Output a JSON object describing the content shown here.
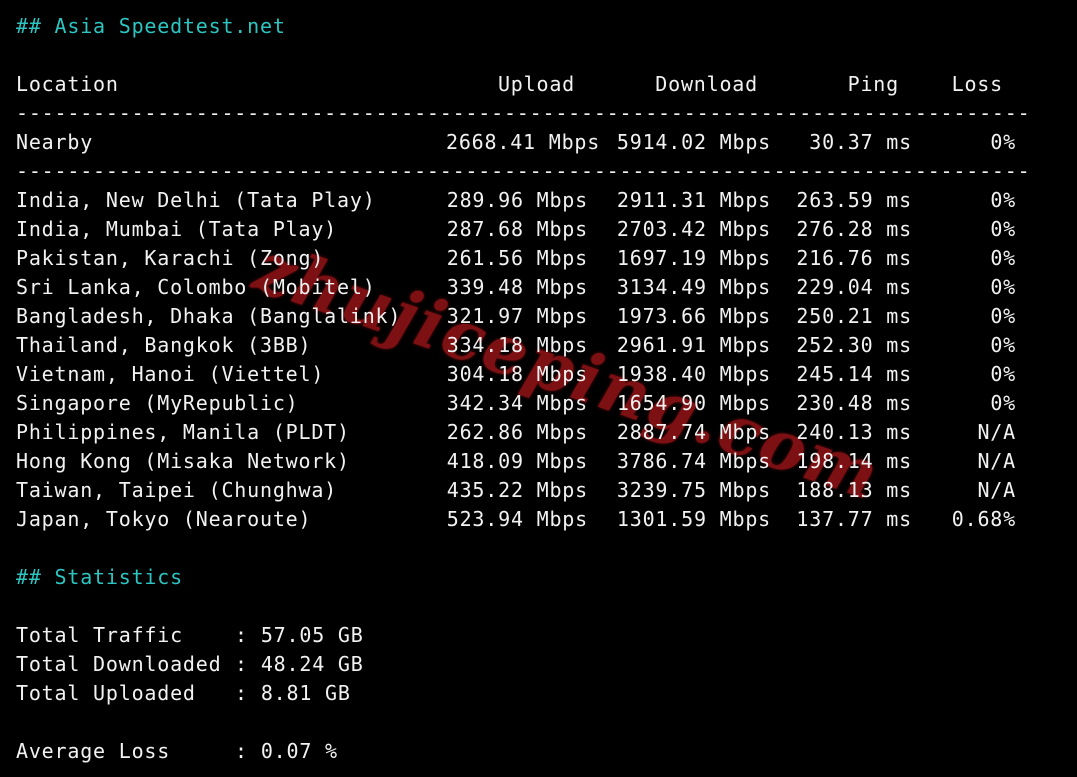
{
  "window": {
    "type": "terminal-output"
  },
  "colors": {
    "background": "#000000",
    "text": "#f2f2f2",
    "heading": "#2cc5c1",
    "watermark": "#7d1013"
  },
  "sections": {
    "speedtest": {
      "title": "## Asia Speedtest.net"
    },
    "statistics": {
      "title": "## Statistics"
    }
  },
  "table": {
    "headers": {
      "location": "Location",
      "upload": "Upload",
      "download": "Download",
      "ping": "Ping",
      "loss": "Loss"
    },
    "separator": "-------------------------------------------------------------------------------",
    "nearby": {
      "location": "Nearby",
      "upload": "2668.41 Mbps",
      "download": "5914.02 Mbps",
      "ping": "30.37 ms",
      "loss": "0%"
    },
    "rows": [
      {
        "location": "India, New Delhi (Tata Play)",
        "upload": "289.96 Mbps",
        "download": "2911.31 Mbps",
        "ping": "263.59 ms",
        "loss": "0%"
      },
      {
        "location": "India, Mumbai (Tata Play)",
        "upload": "287.68 Mbps",
        "download": "2703.42 Mbps",
        "ping": "276.28 ms",
        "loss": "0%"
      },
      {
        "location": "Pakistan, Karachi (Zong)",
        "upload": "261.56 Mbps",
        "download": "1697.19 Mbps",
        "ping": "216.76 ms",
        "loss": "0%"
      },
      {
        "location": "Sri Lanka, Colombo (Mobitel)",
        "upload": "339.48 Mbps",
        "download": "3134.49 Mbps",
        "ping": "229.04 ms",
        "loss": "0%"
      },
      {
        "location": "Bangladesh, Dhaka (Banglalink)",
        "upload": "321.97 Mbps",
        "download": "1973.66 Mbps",
        "ping": "250.21 ms",
        "loss": "0%"
      },
      {
        "location": "Thailand, Bangkok (3BB)",
        "upload": "334.18 Mbps",
        "download": "2961.91 Mbps",
        "ping": "252.30 ms",
        "loss": "0%"
      },
      {
        "location": "Vietnam, Hanoi (Viettel)",
        "upload": "304.18 Mbps",
        "download": "1938.40 Mbps",
        "ping": "245.14 ms",
        "loss": "0%"
      },
      {
        "location": "Singapore (MyRepublic)",
        "upload": "342.34 Mbps",
        "download": "1654.90 Mbps",
        "ping": "230.48 ms",
        "loss": "0%"
      },
      {
        "location": "Philippines, Manila (PLDT)",
        "upload": "262.86 Mbps",
        "download": "2887.74 Mbps",
        "ping": "240.13 ms",
        "loss": "N/A"
      },
      {
        "location": "Hong Kong (Misaka Network)",
        "upload": "418.09 Mbps",
        "download": "3786.74 Mbps",
        "ping": "198.14 ms",
        "loss": "N/A"
      },
      {
        "location": "Taiwan, Taipei (Chunghwa)",
        "upload": "435.22 Mbps",
        "download": "3239.75 Mbps",
        "ping": "188.13 ms",
        "loss": "N/A"
      },
      {
        "location": "Japan, Tokyo (Nearoute)",
        "upload": "523.94 Mbps",
        "download": "1301.59 Mbps",
        "ping": "137.77 ms",
        "loss": "0.68%"
      }
    ]
  },
  "stats": {
    "colon": ":",
    "items": [
      {
        "label": "Total Traffic",
        "value": "57.05 GB"
      },
      {
        "label": "Total Downloaded",
        "value": "48.24 GB"
      },
      {
        "label": "Total Uploaded",
        "value": "8.81 GB"
      }
    ],
    "average": {
      "label": "Average Loss",
      "value": "0.07 %"
    }
  },
  "watermark": {
    "text": "zhujiceping.com"
  }
}
